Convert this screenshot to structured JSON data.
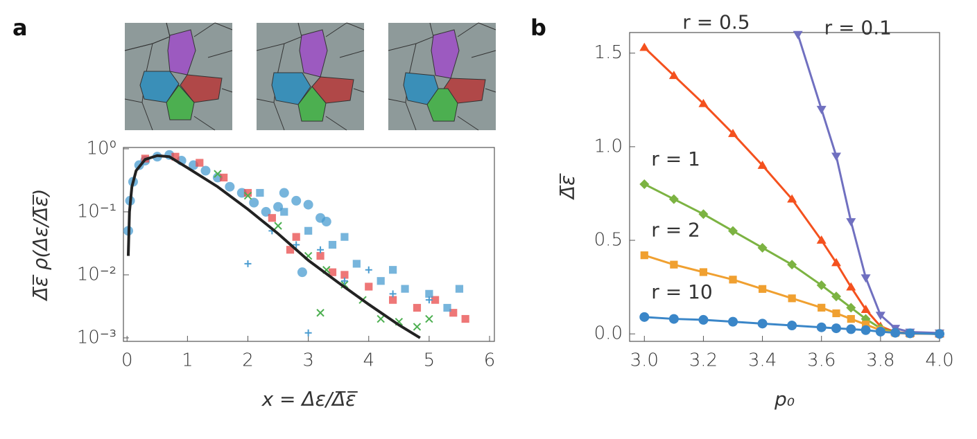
{
  "panel_labels": [
    "a",
    "b"
  ],
  "chart_data": [
    {
      "type": "scatter",
      "log_y": true,
      "xlabel": "x = Δε/Δ̅ε̅",
      "ylabel": "Δ̅ε̅ ρ(Δε/Δ̅ε̅)",
      "xlim": [
        -0.06,
        6.08
      ],
      "ylim": [
        0.00088,
        1.05
      ],
      "xticks": [
        0,
        1,
        2,
        3,
        4,
        5,
        6
      ],
      "yticks": [
        {
          "value": 0.001,
          "label": "10⁻³"
        },
        {
          "value": 0.01,
          "label": "10⁻²"
        },
        {
          "value": 0.1,
          "label": "10⁻¹"
        },
        {
          "value": 1,
          "label": "10⁰"
        }
      ],
      "series": [
        {
          "color": "#4a9cd0",
          "marker": "circle",
          "x": [
            0.02,
            0.05,
            0.1,
            0.2,
            0.3,
            0.5,
            0.7,
            0.9,
            1.1,
            1.3,
            1.5,
            1.7,
            1.9,
            2.1,
            2.3,
            2.5,
            2.6,
            2.8,
            3.0,
            3.2,
            2.9,
            3.3
          ],
          "values": [
            0.05,
            0.15,
            0.3,
            0.55,
            0.65,
            0.75,
            0.8,
            0.65,
            0.55,
            0.45,
            0.35,
            0.25,
            0.2,
            0.14,
            0.1,
            0.12,
            0.2,
            0.15,
            0.13,
            0.08,
            0.011,
            0.07
          ]
        },
        {
          "color": "#e84a4a",
          "marker": "square",
          "x": [
            0.3,
            0.8,
            1.2,
            1.6,
            2.0,
            2.4,
            2.8,
            3.2,
            3.6,
            4.0,
            4.4,
            4.8,
            5.1,
            5.4,
            5.6,
            2.7,
            3.4
          ],
          "values": [
            0.7,
            0.75,
            0.6,
            0.35,
            0.2,
            0.08,
            0.04,
            0.02,
            0.01,
            0.0065,
            0.004,
            0.003,
            0.004,
            0.0025,
            0.002,
            0.025,
            0.011
          ]
        },
        {
          "color": "#4caf50",
          "marker": "x",
          "x": [
            1.5,
            2.0,
            2.5,
            3.0,
            3.3,
            3.6,
            3.9,
            4.2,
            4.5,
            4.8,
            5.0,
            3.2
          ],
          "values": [
            0.4,
            0.18,
            0.06,
            0.02,
            0.012,
            0.007,
            0.004,
            0.002,
            0.0018,
            0.0015,
            0.002,
            0.0025
          ]
        },
        {
          "color": "#4a9cd0",
          "marker": "square",
          "x": [
            2.2,
            2.6,
            3.0,
            3.4,
            3.8,
            4.2,
            4.6,
            5.0,
            5.3,
            5.5,
            4.4,
            3.6
          ],
          "values": [
            0.2,
            0.1,
            0.05,
            0.03,
            0.015,
            0.008,
            0.006,
            0.005,
            0.003,
            0.006,
            0.012,
            0.04
          ]
        },
        {
          "color": "#4a9cd0",
          "marker": "plus",
          "x": [
            2.4,
            2.8,
            3.2,
            3.6,
            4.0,
            4.4,
            5.0,
            2.0,
            3.0
          ],
          "values": [
            0.05,
            0.03,
            0.025,
            0.008,
            0.012,
            0.005,
            0.004,
            0.015,
            0.0012
          ]
        },
        {
          "color": "#222222",
          "marker": "line",
          "x": [
            0.02,
            0.04,
            0.08,
            0.15,
            0.3,
            0.5,
            0.7,
            1.0,
            1.5,
            2.0,
            2.5,
            3.0,
            3.5,
            4.0,
            4.5,
            4.85
          ],
          "values": [
            0.02,
            0.1,
            0.25,
            0.45,
            0.68,
            0.78,
            0.75,
            0.5,
            0.25,
            0.11,
            0.045,
            0.017,
            0.0075,
            0.0034,
            0.0016,
            0.001
          ]
        }
      ]
    },
    {
      "type": "line",
      "xlabel": "p₀",
      "ylabel": "Δ̅ε̅",
      "xlim": [
        2.95,
        4.0
      ],
      "ylim": [
        -0.04,
        1.61
      ],
      "xticks": [
        {
          "value": 3,
          "label": "3.0"
        },
        3.2,
        3.4,
        3.6,
        3.8,
        {
          "value": 4,
          "label": "4.0"
        }
      ],
      "yticks": [
        {
          "value": 0,
          "label": "0.0"
        },
        0.5,
        {
          "value": 1,
          "label": "1.0"
        },
        1.5
      ],
      "series": [
        {
          "name": "r = 0.5",
          "color": "#f4511e",
          "marker": "triangle",
          "x": [
            3.0,
            3.1,
            3.2,
            3.3,
            3.4,
            3.5,
            3.6,
            3.65,
            3.7,
            3.75,
            3.8,
            3.85,
            3.9,
            4.0
          ],
          "values": [
            1.53,
            1.38,
            1.23,
            1.07,
            0.9,
            0.72,
            0.5,
            0.38,
            0.25,
            0.13,
            0.04,
            0.01,
            0.003,
            0
          ]
        },
        {
          "name": "r = 0.1",
          "color": "#7070c0",
          "marker": "tri-down",
          "x": [
            3.52,
            3.6,
            3.65,
            3.7,
            3.75,
            3.8,
            3.85,
            3.9,
            4.0
          ],
          "values": [
            1.6,
            1.2,
            0.95,
            0.6,
            0.3,
            0.1,
            0.03,
            0.01,
            0.005
          ]
        },
        {
          "name": "r = 1",
          "color": "#7cb342",
          "marker": "diamond",
          "x": [
            3.0,
            3.1,
            3.2,
            3.3,
            3.4,
            3.5,
            3.6,
            3.65,
            3.7,
            3.75,
            3.8,
            3.85,
            3.9,
            4.0
          ],
          "values": [
            0.8,
            0.72,
            0.64,
            0.55,
            0.46,
            0.37,
            0.26,
            0.2,
            0.14,
            0.08,
            0.03,
            0.007,
            0.002,
            0
          ]
        },
        {
          "name": "r = 2",
          "color": "#f0a030",
          "marker": "square",
          "x": [
            3.0,
            3.1,
            3.2,
            3.3,
            3.4,
            3.5,
            3.6,
            3.65,
            3.7,
            3.75,
            3.8,
            3.85,
            3.9,
            4.0
          ],
          "values": [
            0.42,
            0.37,
            0.33,
            0.29,
            0.24,
            0.19,
            0.14,
            0.11,
            0.08,
            0.05,
            0.02,
            0.005,
            0.001,
            0
          ]
        },
        {
          "name": "r = 10",
          "color": "#3a86c8",
          "marker": "circle",
          "x": [
            3.0,
            3.1,
            3.2,
            3.3,
            3.4,
            3.5,
            3.6,
            3.65,
            3.7,
            3.75,
            3.8,
            3.85,
            3.9,
            4.0
          ],
          "values": [
            0.09,
            0.08,
            0.075,
            0.065,
            0.055,
            0.045,
            0.035,
            0.03,
            0.025,
            0.02,
            0.012,
            0.006,
            0.003,
            0
          ]
        }
      ]
    }
  ]
}
